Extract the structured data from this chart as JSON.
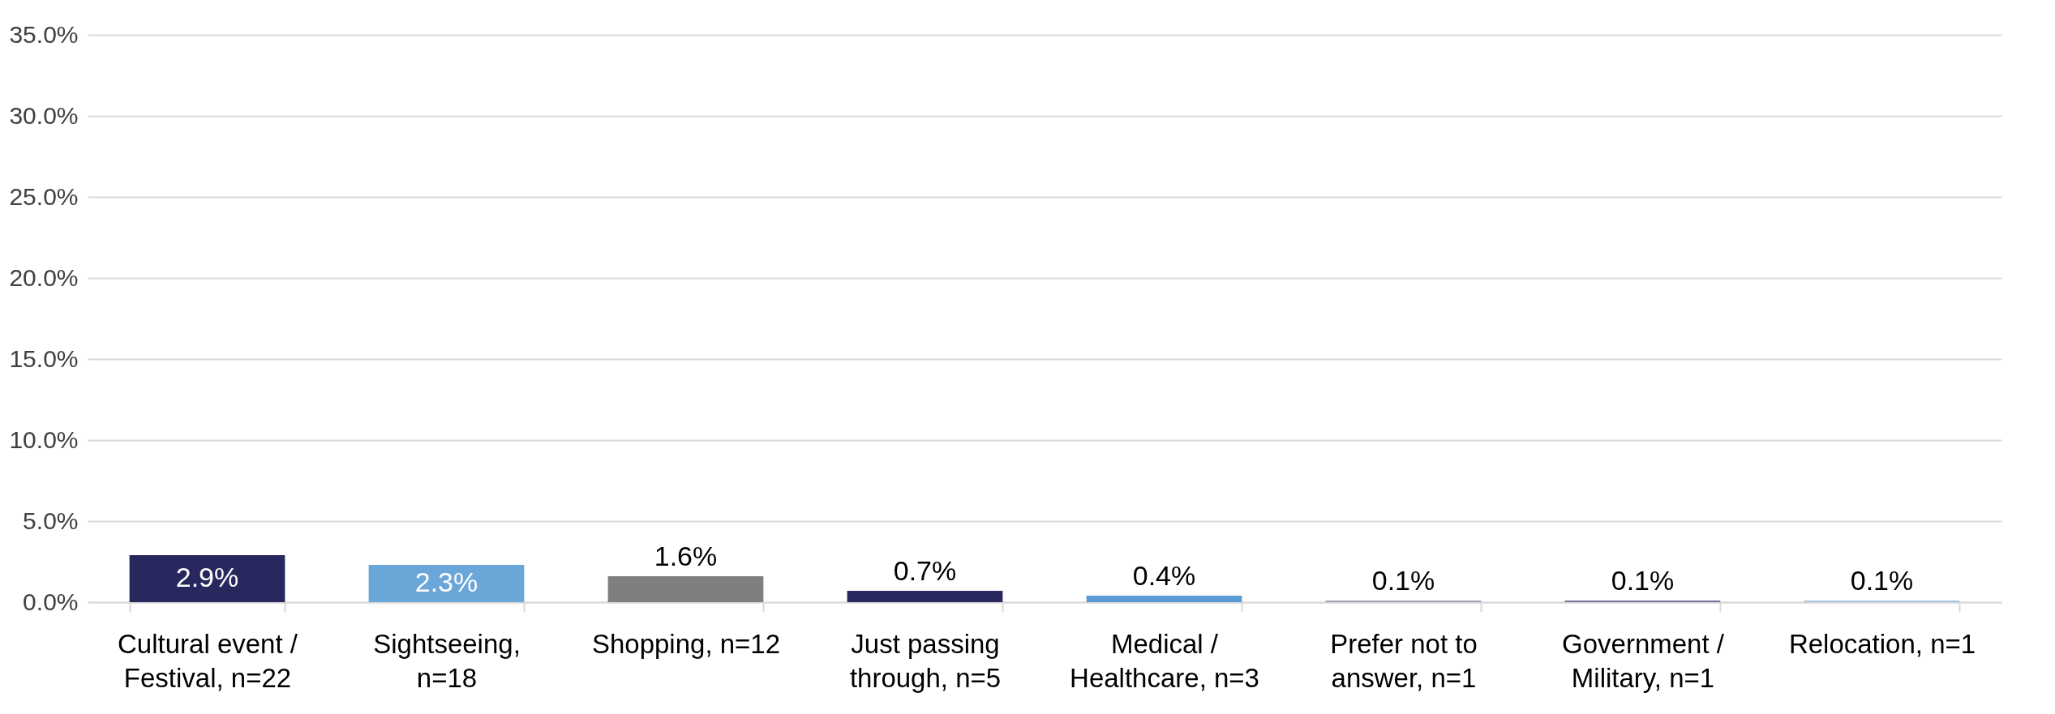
{
  "chart_data": {
    "type": "bar",
    "categories": [
      "Cultural event / Festival, n=22",
      "Sightseeing, n=18",
      "Shopping, n=12",
      "Just passing through, n=5",
      "Medical / Healthcare, n=3",
      "Prefer not to answer, n=1",
      "Government / Military, n=1",
      "Relocation, n=1"
    ],
    "values": [
      2.9,
      2.3,
      1.6,
      0.7,
      0.4,
      0.1,
      0.1,
      0.1
    ],
    "value_labels": [
      "2.9%",
      "2.3%",
      "1.6%",
      "0.7%",
      "0.4%",
      "0.1%",
      "0.1%",
      "0.1%"
    ],
    "colors": [
      "#28285e",
      "#6aa6d8",
      "#7f7f7f",
      "#28285e",
      "#5b9bd5",
      "#a0a0b4",
      "#7a6a9e",
      "#a8c4e0"
    ],
    "ylim": [
      0,
      35
    ],
    "yticks": [
      {
        "value": 0,
        "label": "0.0%"
      },
      {
        "value": 5,
        "label": "5.0%"
      },
      {
        "value": 10,
        "label": "10.0%"
      },
      {
        "value": 15,
        "label": "15.0%"
      },
      {
        "value": 20,
        "label": "20.0%"
      },
      {
        "value": 25,
        "label": "25.0%"
      },
      {
        "value": 30,
        "label": "30.0%"
      },
      {
        "value": 35,
        "label": "35.0%"
      }
    ],
    "grid": "y"
  }
}
